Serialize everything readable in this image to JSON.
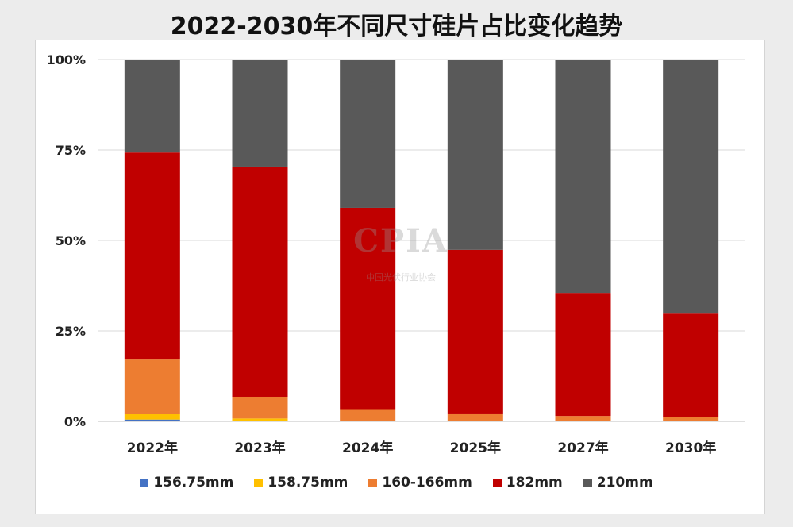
{
  "chart_data": {
    "type": "bar",
    "stacked": true,
    "percent": true,
    "title": "2022-2030年不同尺寸硅片占比变化趋势",
    "categories": [
      "2022年",
      "2023年",
      "2024年",
      "2025年",
      "2027年",
      "2030年"
    ],
    "ylim": [
      0,
      100
    ],
    "yticks": [
      "0%",
      "25%",
      "50%",
      "75%",
      "100%"
    ],
    "grid": true,
    "legend_position": "bottom",
    "series": [
      {
        "name": "156.75mm",
        "color": "#4472C4",
        "values": [
          0.5,
          0,
          0,
          0,
          0,
          0
        ]
      },
      {
        "name": "158.75mm",
        "color": "#FFC000",
        "values": [
          1.5,
          0.8,
          0.2,
          0.1,
          0.1,
          0
        ]
      },
      {
        "name": "160-166mm",
        "color": "#ED7D31",
        "values": [
          15.3,
          6.0,
          3.2,
          2.1,
          1.4,
          1.2
        ]
      },
      {
        "name": "182mm",
        "color": "#C00000",
        "values": [
          57.0,
          63.6,
          55.6,
          45.2,
          34.0,
          28.8
        ]
      },
      {
        "name": "210mm",
        "color": "#595959",
        "values": [
          25.7,
          29.6,
          41.0,
          52.6,
          64.5,
          70.0
        ]
      }
    ]
  },
  "watermark": {
    "logo_text": "CPIA",
    "sub_text": "中国光伏行业协会"
  }
}
